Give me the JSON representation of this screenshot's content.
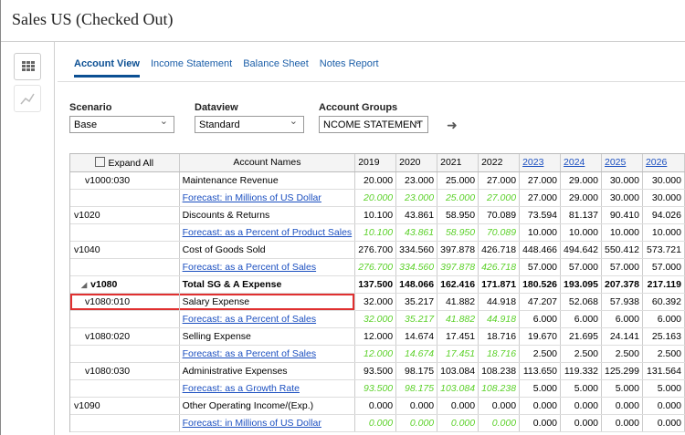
{
  "header": {
    "title": "Sales US (Checked Out)"
  },
  "tabs": [
    {
      "label": "Account View",
      "active": true
    },
    {
      "label": "Income Statement"
    },
    {
      "label": "Balance Sheet"
    },
    {
      "label": "Notes Report"
    }
  ],
  "filters": [
    {
      "label": "Scenario",
      "value": "Base"
    },
    {
      "label": "Dataview",
      "value": "Standard"
    },
    {
      "label": "Account Groups",
      "value": "NCOME STATEMENT"
    }
  ],
  "table": {
    "expand_all": "Expand All",
    "name_header": "Account Names",
    "years": [
      {
        "label": "2019"
      },
      {
        "label": "2020"
      },
      {
        "label": "2021"
      },
      {
        "label": "2022"
      },
      {
        "label": "2023",
        "link": true
      },
      {
        "label": "2024",
        "link": true
      },
      {
        "label": "2025",
        "link": true
      },
      {
        "label": "2026",
        "link": true
      }
    ],
    "rows": [
      {
        "id": "v1000:030",
        "indent": true,
        "name": "Maintenance Revenue",
        "values": [
          "20.000",
          "23.000",
          "25.000",
          "27.000",
          "27.000",
          "29.000",
          "30.000",
          "30.000"
        ]
      },
      {
        "name": "Forecast: in Millions of US Dollar",
        "forecast": true,
        "values": [
          "20.000",
          "23.000",
          "25.000",
          "27.000",
          "27.000",
          "29.000",
          "30.000",
          "30.000"
        ]
      },
      {
        "id": "v1020",
        "name": "Discounts & Returns",
        "values": [
          "10.100",
          "43.861",
          "58.950",
          "70.089",
          "73.594",
          "81.137",
          "90.410",
          "94.026"
        ]
      },
      {
        "name": "Forecast: as a Percent of Product Sales",
        "forecast": true,
        "values": [
          "10.100",
          "43.861",
          "58.950",
          "70.089",
          "10.000",
          "10.000",
          "10.000",
          "10.000"
        ]
      },
      {
        "id": "v1040",
        "name": "Cost of Goods Sold",
        "values": [
          "276.700",
          "334.560",
          "397.878",
          "426.718",
          "448.466",
          "494.642",
          "550.412",
          "573.721"
        ]
      },
      {
        "name": "Forecast: as a Percent of Sales",
        "forecast": true,
        "values": [
          "276.700",
          "334.560",
          "397.878",
          "426.718",
          "57.000",
          "57.000",
          "57.000",
          "57.000"
        ]
      },
      {
        "id": "v1080",
        "group": true,
        "name": "Total SG & A Expense",
        "values": [
          "137.500",
          "148.066",
          "162.416",
          "171.871",
          "180.526",
          "193.095",
          "207.378",
          "217.119"
        ]
      },
      {
        "id": "v1080:010",
        "indent": true,
        "selected": true,
        "name": "Salary Expense",
        "values": [
          "32.000",
          "35.217",
          "41.882",
          "44.918",
          "47.207",
          "52.068",
          "57.938",
          "60.392"
        ]
      },
      {
        "name": "Forecast: as a Percent of Sales",
        "forecast": true,
        "values": [
          "32.000",
          "35.217",
          "41.882",
          "44.918",
          "6.000",
          "6.000",
          "6.000",
          "6.000"
        ]
      },
      {
        "id": "v1080:020",
        "indent": true,
        "name": "Selling Expense",
        "values": [
          "12.000",
          "14.674",
          "17.451",
          "18.716",
          "19.670",
          "21.695",
          "24.141",
          "25.163"
        ]
      },
      {
        "name": "Forecast: as a Percent of Sales",
        "forecast": true,
        "values": [
          "12.000",
          "14.674",
          "17.451",
          "18.716",
          "2.500",
          "2.500",
          "2.500",
          "2.500"
        ]
      },
      {
        "id": "v1080:030",
        "indent": true,
        "name": "Administrative Expenses",
        "values": [
          "93.500",
          "98.175",
          "103.084",
          "108.238",
          "113.650",
          "119.332",
          "125.299",
          "131.564"
        ]
      },
      {
        "name": "Forecast: as a Growth Rate",
        "forecast": true,
        "values": [
          "93.500",
          "98.175",
          "103.084",
          "108.238",
          "5.000",
          "5.000",
          "5.000",
          "5.000"
        ]
      },
      {
        "id": "v1090",
        "name": "Other Operating Income/(Exp.)",
        "values": [
          "0.000",
          "0.000",
          "0.000",
          "0.000",
          "0.000",
          "0.000",
          "0.000",
          "0.000"
        ]
      },
      {
        "name": "Forecast: in Millions of US Dollar",
        "forecast": true,
        "values": [
          "0.000",
          "0.000",
          "0.000",
          "0.000",
          "0.000",
          "0.000",
          "0.000",
          "0.000"
        ]
      }
    ]
  }
}
